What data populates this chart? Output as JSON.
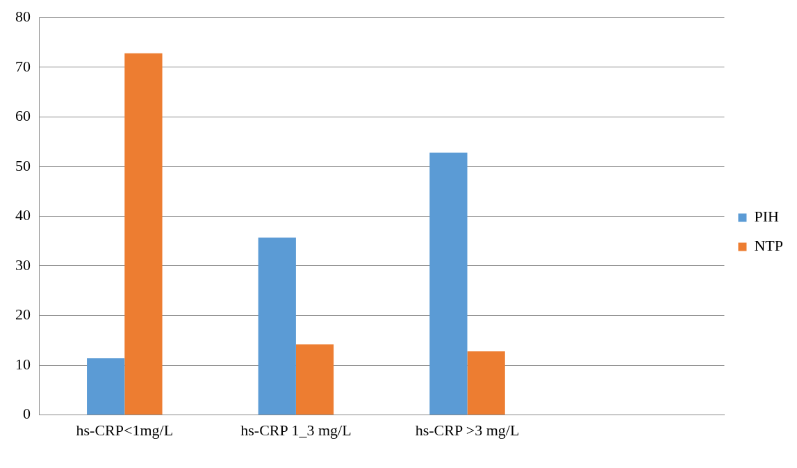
{
  "chart_data": {
    "type": "bar",
    "categories": [
      "hs-CRP<1mg/L",
      "hs-CRP 1_3 mg/L",
      "hs-CRP >3 mg/L",
      null
    ],
    "series": [
      {
        "name": "PIH",
        "color": "#5b9bd5",
        "values": [
          11.4,
          35.7,
          52.8,
          null
        ]
      },
      {
        "name": "NTP",
        "color": "#ed7d31",
        "values": [
          72.8,
          14.2,
          12.8,
          null
        ]
      }
    ],
    "ylim": [
      0,
      80
    ],
    "yticks": [
      0,
      10,
      20,
      30,
      40,
      50,
      60,
      70,
      80
    ],
    "grid": "y",
    "legend": "right"
  }
}
